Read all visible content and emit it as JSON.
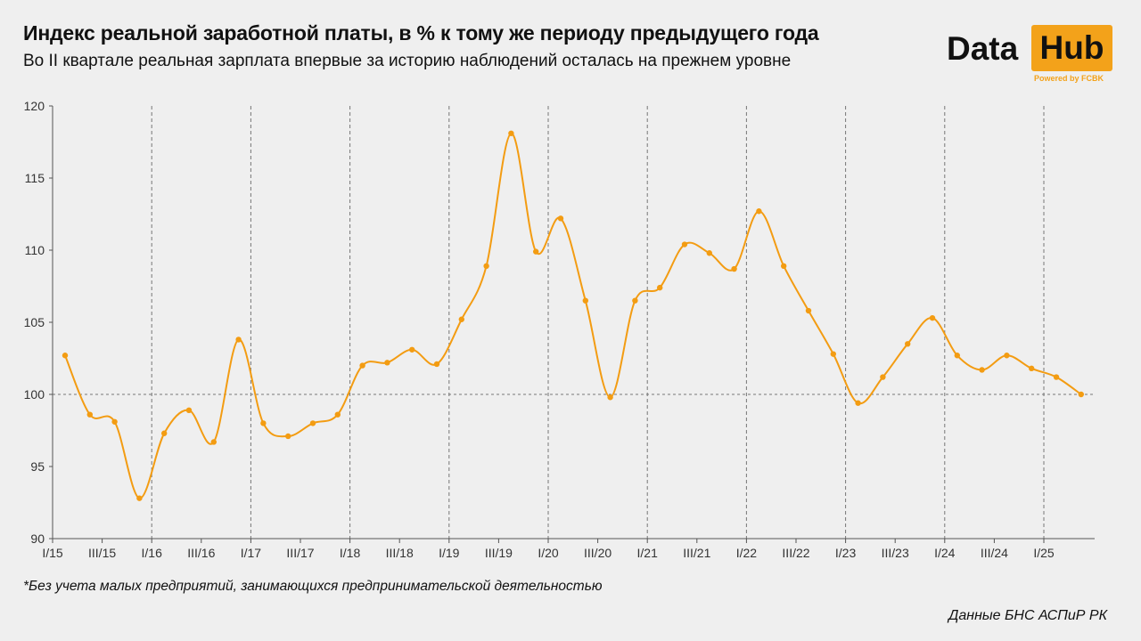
{
  "header": {
    "title": "Индекс реальной заработной платы, в % к тому же периоду предыдущего года",
    "subtitle": "Во II квартале реальная зарплата впервые за историю наблюдений осталась на прежнем уровне"
  },
  "logo": {
    "word1": "Data",
    "word2": "Hub",
    "powered": "Powered by FCBK"
  },
  "footnote": "*Без учета малых предприятий, занимающихся предпринимательской деятельностью",
  "source": "Данные БНС АСПиР РК",
  "colors": {
    "line": "#f39c12",
    "background": "#efefef",
    "logo_accent": "#f3a21a"
  },
  "chart_data": {
    "type": "line",
    "title": "Индекс реальной заработной платы, в % к тому же периоду предыдущего года",
    "ylim": [
      90,
      120
    ],
    "yticks": [
      90,
      95,
      100,
      105,
      110,
      115,
      120
    ],
    "reference_line": 100,
    "grid": "vertical dashed lines at each year start",
    "x_tick_labels": [
      "I/15",
      "III/15",
      "I/16",
      "III/16",
      "I/17",
      "III/17",
      "I/18",
      "III/18",
      "I/19",
      "III/19",
      "I/20",
      "III/20",
      "I/21",
      "III/21",
      "I/22",
      "III/22",
      "I/23",
      "III/23",
      "I/24",
      "III/24",
      "I/25"
    ],
    "categories": [
      "I/15",
      "II/15",
      "III/15",
      "IV/15",
      "I/16",
      "II/16",
      "III/16",
      "IV/16",
      "I/17",
      "II/17",
      "III/17",
      "IV/17",
      "I/18",
      "II/18",
      "III/18",
      "IV/18",
      "I/19",
      "II/19",
      "III/19",
      "IV/19",
      "I/20",
      "II/20",
      "III/20",
      "IV/20",
      "I/21",
      "II/21",
      "III/21",
      "IV/21",
      "I/22",
      "II/22",
      "III/22",
      "IV/22",
      "I/23",
      "II/23",
      "III/23",
      "IV/23",
      "I/24",
      "II/24",
      "III/24",
      "IV/24",
      "I/25",
      "II/25"
    ],
    "values": [
      102.7,
      98.6,
      98.1,
      92.8,
      97.3,
      98.9,
      96.7,
      103.8,
      98.0,
      97.1,
      98.0,
      98.6,
      102.0,
      102.2,
      103.1,
      102.1,
      105.2,
      108.9,
      118.1,
      109.9,
      112.2,
      106.5,
      99.8,
      106.5,
      107.4,
      110.4,
      109.8,
      108.7,
      112.7,
      108.9,
      105.8,
      102.8,
      99.4,
      101.2,
      103.5,
      105.3,
      102.7,
      101.7,
      102.7,
      101.8,
      101.2,
      100.0
    ]
  }
}
